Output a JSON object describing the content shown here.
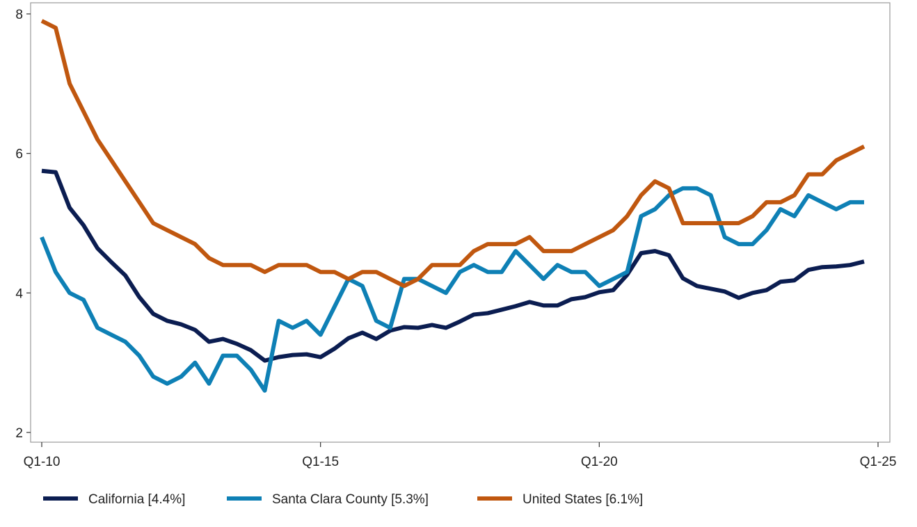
{
  "chart_data": {
    "type": "line",
    "title": "",
    "xlabel": "",
    "ylabel": "",
    "x_range": [
      0,
      60
    ],
    "ylim": [
      2,
      8
    ],
    "y_ticks": [
      2,
      4,
      6,
      8
    ],
    "x_ticks": [
      {
        "label": "Q1-10",
        "x": 0
      },
      {
        "label": "Q1-15",
        "x": 20
      },
      {
        "label": "Q1-20",
        "x": 40
      },
      {
        "label": "Q1-25",
        "x": 60
      }
    ],
    "grid": false,
    "legend_position": "bottom",
    "series": [
      {
        "name": "California [4.4%]",
        "color": "#0b1d51",
        "values": [
          5.75,
          5.73,
          5.22,
          4.97,
          4.64,
          4.44,
          4.25,
          3.94,
          3.7,
          3.6,
          3.55,
          3.47,
          3.3,
          3.34,
          3.27,
          3.18,
          3.03,
          3.08,
          3.11,
          3.12,
          3.08,
          3.2,
          3.35,
          3.43,
          3.34,
          3.46,
          3.51,
          3.5,
          3.54,
          3.5,
          3.59,
          3.69,
          3.71,
          3.76,
          3.81,
          3.87,
          3.82,
          3.82,
          3.91,
          3.94,
          4.01,
          4.04,
          4.26,
          4.57,
          4.6,
          4.54,
          4.21,
          4.1,
          4.06,
          4.02,
          3.93,
          4.0,
          4.04,
          4.16,
          4.18,
          4.33,
          4.37,
          4.38,
          4.4,
          4.45
        ]
      },
      {
        "name": "Santa Clara County [5.3%]",
        "color": "#0e80b5",
        "values": [
          4.8,
          4.3,
          4.0,
          3.9,
          3.5,
          3.4,
          3.3,
          3.1,
          2.8,
          2.7,
          2.8,
          3.0,
          2.7,
          3.1,
          3.1,
          2.9,
          2.6,
          3.6,
          3.5,
          3.6,
          3.4,
          3.8,
          4.2,
          4.1,
          3.6,
          3.5,
          4.2,
          4.2,
          4.1,
          4.0,
          4.3,
          4.4,
          4.3,
          4.3,
          4.6,
          4.4,
          4.2,
          4.4,
          4.3,
          4.3,
          4.1,
          4.2,
          4.3,
          5.1,
          5.2,
          5.4,
          5.5,
          5.5,
          5.4,
          4.8,
          4.7,
          4.7,
          4.9,
          5.2,
          5.1,
          5.4,
          5.3,
          5.2,
          5.3,
          5.3
        ]
      },
      {
        "name": "United States [6.1%]",
        "color": "#c0570f",
        "values": [
          7.9,
          7.8,
          7.0,
          6.6,
          6.2,
          5.9,
          5.6,
          5.3,
          5.0,
          4.9,
          4.8,
          4.7,
          4.5,
          4.4,
          4.4,
          4.4,
          4.3,
          4.4,
          4.4,
          4.4,
          4.3,
          4.3,
          4.2,
          4.3,
          4.3,
          4.2,
          4.1,
          4.2,
          4.4,
          4.4,
          4.4,
          4.6,
          4.7,
          4.7,
          4.7,
          4.8,
          4.6,
          4.6,
          4.6,
          4.7,
          4.8,
          4.9,
          5.1,
          5.4,
          5.6,
          5.5,
          5.0,
          5.0,
          5.0,
          5.0,
          5.0,
          5.1,
          5.3,
          5.3,
          5.4,
          5.7,
          5.7,
          5.9,
          6.0,
          6.1
        ]
      }
    ]
  }
}
